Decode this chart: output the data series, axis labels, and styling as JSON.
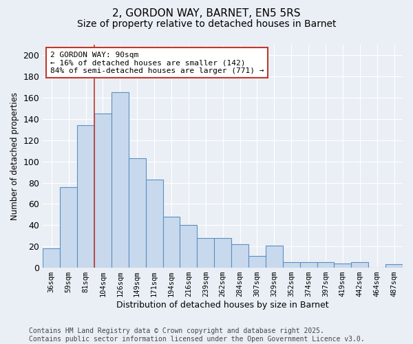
{
  "title1": "2, GORDON WAY, BARNET, EN5 5RS",
  "title2": "Size of property relative to detached houses in Barnet",
  "xlabel": "Distribution of detached houses by size in Barnet",
  "ylabel": "Number of detached properties",
  "categories": [
    "36sqm",
    "59sqm",
    "81sqm",
    "104sqm",
    "126sqm",
    "149sqm",
    "171sqm",
    "194sqm",
    "216sqm",
    "239sqm",
    "262sqm",
    "284sqm",
    "307sqm",
    "329sqm",
    "352sqm",
    "374sqm",
    "397sqm",
    "419sqm",
    "442sqm",
    "464sqm",
    "487sqm"
  ],
  "values": [
    18,
    76,
    134,
    145,
    165,
    103,
    83,
    48,
    40,
    28,
    28,
    22,
    11,
    21,
    5,
    5,
    5,
    4,
    5,
    0,
    3
  ],
  "bar_color": "#c9d9ed",
  "bar_edge_color": "#5a8fc0",
  "annotation_box_text": "2 GORDON WAY: 90sqm\n← 16% of detached houses are smaller (142)\n84% of semi-detached houses are larger (771) →",
  "vline_x": 2.5,
  "vline_color": "#c0392b",
  "ylim": [
    0,
    210
  ],
  "yticks": [
    0,
    20,
    40,
    60,
    80,
    100,
    120,
    140,
    160,
    180,
    200
  ],
  "bg_color": "#eaeff5",
  "plot_bg_color": "#eaeff5",
  "grid_color": "#ffffff",
  "footer": "Contains HM Land Registry data © Crown copyright and database right 2025.\nContains public sector information licensed under the Open Government Licence v3.0.",
  "title_fontsize": 11,
  "subtitle_fontsize": 10,
  "annotation_fontsize": 8,
  "footer_fontsize": 7
}
